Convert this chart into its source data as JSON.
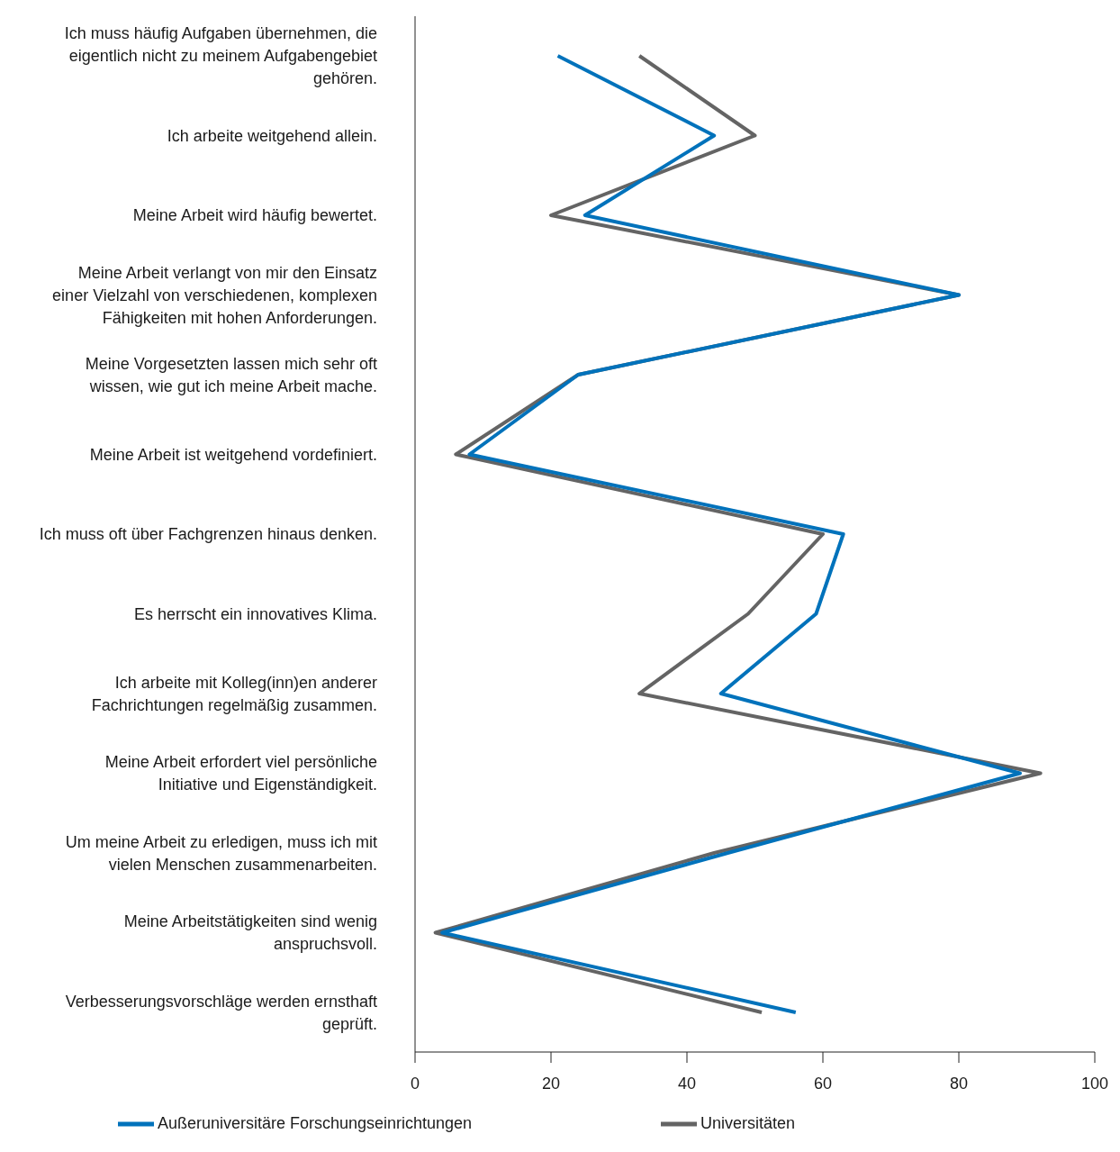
{
  "chart_data": {
    "type": "line",
    "orientation": "horizontal",
    "categories": [
      "Ich muss häufig Aufgaben übernehmen, die eigentlich nicht zu meinem Aufgabengebiet gehören.",
      "Ich arbeite weitgehend allein.",
      "Meine Arbeit wird häufig bewertet.",
      "Meine Arbeit verlangt von mir den Einsatz einer Vielzahl von verschiedenen, komplexen Fähigkeiten mit hohen Anforderungen.",
      "Meine Vorgesetzten lassen mich sehr oft wissen, wie gut ich meine Arbeit mache.",
      "Meine Arbeit ist weitgehend vordefiniert.",
      "Ich muss oft über Fachgrenzen hinaus denken.",
      "Es herrscht ein innovatives Klima.",
      "Ich arbeite mit Kolleg(inn)en anderer Fachrichtungen regelmäßig zusammen.",
      "Meine Arbeit erfordert viel persönliche Initiative und Eigenständigkeit.",
      "Um meine Arbeit zu erledigen, muss ich mit vielen Menschen zusammenarbeiten.",
      "Meine Arbeitstätigkeiten sind wenig anspruchsvoll.",
      "Verbesserungsvorschläge werden ernsthaft geprüft."
    ],
    "series": [
      {
        "name": "Universitäten",
        "color": "#646464",
        "values": [
          33,
          50,
          20,
          80,
          24,
          6,
          60,
          49,
          33,
          92,
          44,
          3,
          51
        ]
      },
      {
        "name": "Außeruniversitäre Forschungseinrichtungen",
        "color": "#0072bb",
        "values": [
          21,
          44,
          25,
          80,
          24,
          8,
          63,
          59,
          45,
          89,
          46,
          4,
          56
        ]
      }
    ],
    "xlim": [
      0,
      100
    ],
    "xticks": [
      0,
      20,
      40,
      60,
      80,
      100
    ],
    "grid": false,
    "legend": "bottom",
    "marker": "none",
    "line_style": "solid"
  }
}
